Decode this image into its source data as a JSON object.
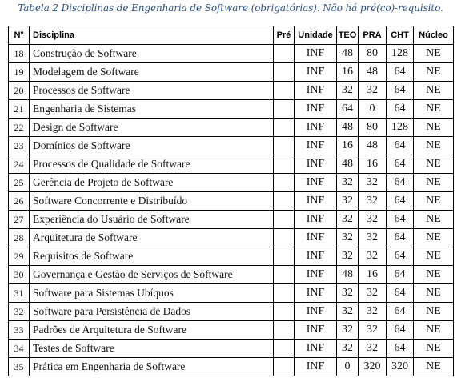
{
  "caption": "Tabela 2 Disciplinas de Engenharia de Software (obrigatórias). Não há pré(co)-requisito.",
  "table": {
    "headers": {
      "num": "Nº",
      "name": "Disciplina",
      "pre": "Pré",
      "unit": "Unidade",
      "teo": "TEO",
      "pra": "PRA",
      "cht": "CHT",
      "core": "Núcleo"
    },
    "rows": [
      {
        "num": "18",
        "name": "Construção de Software",
        "pre": "",
        "unit": "INF",
        "teo": "48",
        "pra": "80",
        "cht": "128",
        "core": "NE"
      },
      {
        "num": "19",
        "name": "Modelagem de Software",
        "pre": "",
        "unit": "INF",
        "teo": "16",
        "pra": "48",
        "cht": "64",
        "core": "NE"
      },
      {
        "num": "20",
        "name": "Processos de Software",
        "pre": "",
        "unit": "INF",
        "teo": "32",
        "pra": "32",
        "cht": "64",
        "core": "NE"
      },
      {
        "num": "21",
        "name": "Engenharia de Sistemas",
        "pre": "",
        "unit": "INF",
        "teo": "64",
        "pra": "0",
        "cht": "64",
        "core": "NE"
      },
      {
        "num": "22",
        "name": "Design de Software",
        "pre": "",
        "unit": "INF",
        "teo": "48",
        "pra": "80",
        "cht": "128",
        "core": "NE"
      },
      {
        "num": "23",
        "name": "Domínios de Software",
        "pre": "",
        "unit": "INF",
        "teo": "16",
        "pra": "48",
        "cht": "64",
        "core": "NE"
      },
      {
        "num": "24",
        "name": "Processos de Qualidade de Software",
        "pre": "",
        "unit": "INF",
        "teo": "48",
        "pra": "16",
        "cht": "64",
        "core": "NE"
      },
      {
        "num": "25",
        "name": "Gerência de Projeto de Software",
        "pre": "",
        "unit": "INF",
        "teo": "32",
        "pra": "32",
        "cht": "64",
        "core": "NE"
      },
      {
        "num": "26",
        "name": "Software Concorrente e Distribuído",
        "pre": "",
        "unit": "INF",
        "teo": "32",
        "pra": "32",
        "cht": "64",
        "core": "NE"
      },
      {
        "num": "27",
        "name": "Experiência do Usuário de Software",
        "pre": "",
        "unit": "INF",
        "teo": "32",
        "pra": "32",
        "cht": "64",
        "core": "NE"
      },
      {
        "num": "28",
        "name": "Arquitetura de Software",
        "pre": "",
        "unit": "INF",
        "teo": "32",
        "pra": "32",
        "cht": "64",
        "core": "NE"
      },
      {
        "num": "29",
        "name": "Requisitos de Software",
        "pre": "",
        "unit": "INF",
        "teo": "32",
        "pra": "32",
        "cht": "64",
        "core": "NE"
      },
      {
        "num": "30",
        "name": "Governança e Gestão de Serviços de Software",
        "pre": "",
        "unit": "INF",
        "teo": "48",
        "pra": "16",
        "cht": "64",
        "core": "NE"
      },
      {
        "num": "31",
        "name": "Software para Sistemas Ubíquos",
        "pre": "",
        "unit": "INF",
        "teo": "32",
        "pra": "32",
        "cht": "64",
        "core": "NE"
      },
      {
        "num": "32",
        "name": "Software para Persistência de Dados",
        "pre": "",
        "unit": "INF",
        "teo": "32",
        "pra": "32",
        "cht": "64",
        "core": "NE"
      },
      {
        "num": "33",
        "name": "Padrões de Arquitetura de Software",
        "pre": "",
        "unit": "INF",
        "teo": "32",
        "pra": "32",
        "cht": "64",
        "core": "NE"
      },
      {
        "num": "34",
        "name": "Testes de Software",
        "pre": "",
        "unit": "INF",
        "teo": "32",
        "pra": "32",
        "cht": "64",
        "core": "NE"
      },
      {
        "num": "35",
        "name": "Prática em Engenharia de Software",
        "pre": "",
        "unit": "INF",
        "teo": "0",
        "pra": "320",
        "cht": "320",
        "core": "NE"
      }
    ]
  }
}
